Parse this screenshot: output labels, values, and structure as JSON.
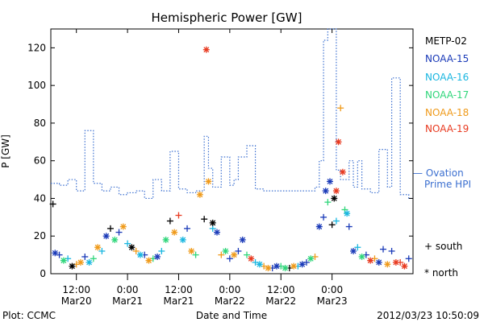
{
  "chart_data": {
    "type": "scatter",
    "title": "Hemispheric Power [GW]",
    "xlabel": "Date and Time",
    "ylabel": "P [GW]",
    "xlim": [
      "2012-03-20T06:00",
      "2012-03-23T19:00"
    ],
    "ylim": [
      0,
      130
    ],
    "yticks": [
      0,
      20,
      40,
      60,
      80,
      100,
      120
    ],
    "xticks": [
      {
        "t": "2012-03-20T12:00",
        "line1": "12:00",
        "line2": "Mar20"
      },
      {
        "t": "2012-03-21T00:00",
        "line1": "0:00",
        "line2": "Mar21"
      },
      {
        "t": "2012-03-21T12:00",
        "line1": "12:00",
        "line2": "Mar21"
      },
      {
        "t": "2012-03-22T00:00",
        "line1": "0:00",
        "line2": "Mar22"
      },
      {
        "t": "2012-03-22T12:00",
        "line1": "12:00",
        "line2": "Mar22"
      },
      {
        "t": "2012-03-23T00:00",
        "line1": "0:00",
        "line2": "Mar23"
      }
    ],
    "legend": {
      "placement": "right",
      "satellites": [
        {
          "name": "METP-02",
          "color": "#000000"
        },
        {
          "name": "NOAA-15",
          "color": "#1a3ab8"
        },
        {
          "name": "NOAA-16",
          "color": "#19b6e0"
        },
        {
          "name": "NOAA-17",
          "color": "#2fd67a"
        },
        {
          "name": "NOAA-18",
          "color": "#ef9a1a"
        },
        {
          "name": "NOAA-19",
          "color": "#e83a20"
        }
      ],
      "ovation_line1": "— Ovation",
      "ovation_line2": "Prime HPI",
      "ovation_color": "#3b6fd0",
      "south_label": "+ south",
      "north_label": "* north"
    },
    "series": [
      {
        "name": "Ovation Prime HPI",
        "style": "dotted-step",
        "color": "#3b6fd0",
        "t": [
          "2012-03-20T06:00",
          "2012-03-20T08:00",
          "2012-03-20T10:00",
          "2012-03-20T12:00",
          "2012-03-20T14:00",
          "2012-03-20T16:00",
          "2012-03-20T18:00",
          "2012-03-20T20:00",
          "2012-03-20T22:00",
          "2012-03-21T00:00",
          "2012-03-21T02:00",
          "2012-03-21T04:00",
          "2012-03-21T06:00",
          "2012-03-21T08:00",
          "2012-03-21T10:00",
          "2012-03-21T12:00",
          "2012-03-21T14:00",
          "2012-03-21T16:00",
          "2012-03-21T18:00",
          "2012-03-21T19:00",
          "2012-03-21T20:00",
          "2012-03-21T22:00",
          "2012-03-22T00:00",
          "2012-03-22T01:00",
          "2012-03-22T02:00",
          "2012-03-22T04:00",
          "2012-03-22T06:00",
          "2012-03-22T08:00",
          "2012-03-22T10:00",
          "2012-03-22T12:00",
          "2012-03-22T14:00",
          "2012-03-22T16:00",
          "2012-03-22T18:00",
          "2012-03-22T19:00",
          "2012-03-22T20:00",
          "2012-03-22T21:00",
          "2012-03-22T22:00",
          "2012-03-22T23:00",
          "2012-03-23T00:00",
          "2012-03-23T01:00",
          "2012-03-23T02:00",
          "2012-03-23T04:00",
          "2012-03-23T05:00",
          "2012-03-23T06:00",
          "2012-03-23T07:00",
          "2012-03-23T09:00",
          "2012-03-23T11:00",
          "2012-03-23T13:00",
          "2012-03-23T14:00",
          "2012-03-23T16:00",
          "2012-03-23T18:00",
          "2012-03-23T19:00"
        ],
        "y": [
          48,
          47,
          50,
          44,
          76,
          48,
          44,
          46,
          42,
          43,
          44,
          40,
          50,
          44,
          65,
          45,
          43,
          44,
          73,
          56,
          46,
          62,
          47,
          50,
          62,
          68,
          45,
          44,
          44,
          44,
          44,
          44,
          44,
          44,
          46,
          60,
          124,
          130,
          130,
          55,
          50,
          60,
          46,
          60,
          45,
          43,
          66,
          46,
          104,
          42,
          40,
          40
        ]
      },
      {
        "name": "south",
        "marker": "+",
        "points": [
          {
            "t": "2012-03-20T06:30",
            "y": 37,
            "c": "#000000"
          },
          {
            "t": "2012-03-20T08:00",
            "y": 10,
            "c": "#1a3ab8"
          },
          {
            "t": "2012-03-20T10:00",
            "y": 8,
            "c": "#19b6e0"
          },
          {
            "t": "2012-03-20T12:00",
            "y": 5,
            "c": "#ef9a1a"
          },
          {
            "t": "2012-03-20T14:00",
            "y": 9,
            "c": "#1a3ab8"
          },
          {
            "t": "2012-03-20T16:00",
            "y": 8,
            "c": "#2fd67a"
          },
          {
            "t": "2012-03-20T18:00",
            "y": 12,
            "c": "#19b6e0"
          },
          {
            "t": "2012-03-20T20:00",
            "y": 24,
            "c": "#000000"
          },
          {
            "t": "2012-03-20T22:00",
            "y": 22,
            "c": "#1a3ab8"
          },
          {
            "t": "2012-03-21T00:00",
            "y": 16,
            "c": "#19b6e0"
          },
          {
            "t": "2012-03-21T02:00",
            "y": 12,
            "c": "#ef9a1a"
          },
          {
            "t": "2012-03-21T04:00",
            "y": 10,
            "c": "#1a3ab8"
          },
          {
            "t": "2012-03-21T06:00",
            "y": 8,
            "c": "#2fd67a"
          },
          {
            "t": "2012-03-21T08:00",
            "y": 12,
            "c": "#19b6e0"
          },
          {
            "t": "2012-03-21T10:00",
            "y": 28,
            "c": "#000000"
          },
          {
            "t": "2012-03-21T12:00",
            "y": 31,
            "c": "#e83a20"
          },
          {
            "t": "2012-03-21T14:00",
            "y": 24,
            "c": "#1a3ab8"
          },
          {
            "t": "2012-03-21T16:00",
            "y": 10,
            "c": "#2fd67a"
          },
          {
            "t": "2012-03-21T18:00",
            "y": 29,
            "c": "#000000"
          },
          {
            "t": "2012-03-21T20:00",
            "y": 24,
            "c": "#19b6e0"
          },
          {
            "t": "2012-03-21T22:00",
            "y": 10,
            "c": "#ef9a1a"
          },
          {
            "t": "2012-03-22T00:00",
            "y": 8,
            "c": "#1a3ab8"
          },
          {
            "t": "2012-03-22T02:00",
            "y": 12,
            "c": "#1a3ab8"
          },
          {
            "t": "2012-03-22T04:00",
            "y": 10,
            "c": "#2fd67a"
          },
          {
            "t": "2012-03-22T06:00",
            "y": 6,
            "c": "#19b6e0"
          },
          {
            "t": "2012-03-22T08:00",
            "y": 4,
            "c": "#ef9a1a"
          },
          {
            "t": "2012-03-22T10:00",
            "y": 3,
            "c": "#1a3ab8"
          },
          {
            "t": "2012-03-22T12:00",
            "y": 4,
            "c": "#2fd67a"
          },
          {
            "t": "2012-03-22T14:00",
            "y": 3,
            "c": "#000000"
          },
          {
            "t": "2012-03-22T16:00",
            "y": 4,
            "c": "#19b6e0"
          },
          {
            "t": "2012-03-22T18:00",
            "y": 6,
            "c": "#1a3ab8"
          },
          {
            "t": "2012-03-22T20:00",
            "y": 9,
            "c": "#ef9a1a"
          },
          {
            "t": "2012-03-22T22:00",
            "y": 30,
            "c": "#1a3ab8"
          },
          {
            "t": "2012-03-22T23:00",
            "y": 38,
            "c": "#2fd67a"
          },
          {
            "t": "2012-03-23T00:00",
            "y": 26,
            "c": "#000000"
          },
          {
            "t": "2012-03-23T01:00",
            "y": 28,
            "c": "#19b6e0"
          },
          {
            "t": "2012-03-23T02:00",
            "y": 88,
            "c": "#ef9a1a"
          },
          {
            "t": "2012-03-23T03:00",
            "y": 34,
            "c": "#2fd67a"
          },
          {
            "t": "2012-03-23T04:00",
            "y": 25,
            "c": "#1a3ab8"
          },
          {
            "t": "2012-03-23T06:00",
            "y": 14,
            "c": "#19b6e0"
          },
          {
            "t": "2012-03-23T08:00",
            "y": 10,
            "c": "#1a3ab8"
          },
          {
            "t": "2012-03-23T10:00",
            "y": 8,
            "c": "#ef9a1a"
          },
          {
            "t": "2012-03-23T12:00",
            "y": 13,
            "c": "#1a3ab8"
          },
          {
            "t": "2012-03-23T14:00",
            "y": 12,
            "c": "#1a3ab8"
          },
          {
            "t": "2012-03-23T16:00",
            "y": 6,
            "c": "#e83a20"
          },
          {
            "t": "2012-03-23T18:00",
            "y": 8,
            "c": "#1a3ab8"
          }
        ]
      },
      {
        "name": "north",
        "marker": "*",
        "points": [
          {
            "t": "2012-03-20T07:00",
            "y": 11,
            "c": "#1a3ab8"
          },
          {
            "t": "2012-03-20T09:00",
            "y": 7,
            "c": "#2fd67a"
          },
          {
            "t": "2012-03-20T11:00",
            "y": 4,
            "c": "#000000"
          },
          {
            "t": "2012-03-20T13:00",
            "y": 6,
            "c": "#ef9a1a"
          },
          {
            "t": "2012-03-20T15:00",
            "y": 6,
            "c": "#19b6e0"
          },
          {
            "t": "2012-03-20T17:00",
            "y": 14,
            "c": "#ef9a1a"
          },
          {
            "t": "2012-03-20T19:00",
            "y": 20,
            "c": "#1a3ab8"
          },
          {
            "t": "2012-03-20T21:00",
            "y": 18,
            "c": "#2fd67a"
          },
          {
            "t": "2012-03-20T23:00",
            "y": 25,
            "c": "#ef9a1a"
          },
          {
            "t": "2012-03-21T01:00",
            "y": 14,
            "c": "#000000"
          },
          {
            "t": "2012-03-21T03:00",
            "y": 10,
            "c": "#19b6e0"
          },
          {
            "t": "2012-03-21T05:00",
            "y": 7,
            "c": "#ef9a1a"
          },
          {
            "t": "2012-03-21T07:00",
            "y": 9,
            "c": "#1a3ab8"
          },
          {
            "t": "2012-03-21T09:00",
            "y": 18,
            "c": "#2fd67a"
          },
          {
            "t": "2012-03-21T11:00",
            "y": 22,
            "c": "#ef9a1a"
          },
          {
            "t": "2012-03-21T13:00",
            "y": 18,
            "c": "#19b6e0"
          },
          {
            "t": "2012-03-21T15:00",
            "y": 12,
            "c": "#ef9a1a"
          },
          {
            "t": "2012-03-21T17:00",
            "y": 42,
            "c": "#ef9a1a"
          },
          {
            "t": "2012-03-21T18:30",
            "y": 119,
            "c": "#e83a20"
          },
          {
            "t": "2012-03-21T19:00",
            "y": 49,
            "c": "#ef9a1a"
          },
          {
            "t": "2012-03-21T20:00",
            "y": 27,
            "c": "#000000"
          },
          {
            "t": "2012-03-21T21:00",
            "y": 22,
            "c": "#1a3ab8"
          },
          {
            "t": "2012-03-21T23:00",
            "y": 12,
            "c": "#2fd67a"
          },
          {
            "t": "2012-03-22T01:00",
            "y": 10,
            "c": "#ef9a1a"
          },
          {
            "t": "2012-03-22T03:00",
            "y": 18,
            "c": "#1a3ab8"
          },
          {
            "t": "2012-03-22T05:00",
            "y": 8,
            "c": "#e83a20"
          },
          {
            "t": "2012-03-22T07:00",
            "y": 5,
            "c": "#19b6e0"
          },
          {
            "t": "2012-03-22T09:00",
            "y": 3,
            "c": "#ef9a1a"
          },
          {
            "t": "2012-03-22T11:00",
            "y": 4,
            "c": "#1a3ab8"
          },
          {
            "t": "2012-03-22T13:00",
            "y": 3,
            "c": "#2fd67a"
          },
          {
            "t": "2012-03-22T15:00",
            "y": 4,
            "c": "#ef9a1a"
          },
          {
            "t": "2012-03-22T17:00",
            "y": 5,
            "c": "#1a3ab8"
          },
          {
            "t": "2012-03-22T19:00",
            "y": 8,
            "c": "#2fd67a"
          },
          {
            "t": "2012-03-22T21:00",
            "y": 25,
            "c": "#1a3ab8"
          },
          {
            "t": "2012-03-22T22:30",
            "y": 44,
            "c": "#1a3ab8"
          },
          {
            "t": "2012-03-22T23:30",
            "y": 49,
            "c": "#1a3ab8"
          },
          {
            "t": "2012-03-23T00:30",
            "y": 40,
            "c": "#000000"
          },
          {
            "t": "2012-03-23T01:00",
            "y": 44,
            "c": "#e83a20"
          },
          {
            "t": "2012-03-23T01:30",
            "y": 70,
            "c": "#e83a20"
          },
          {
            "t": "2012-03-23T02:30",
            "y": 54,
            "c": "#e83a20"
          },
          {
            "t": "2012-03-23T03:30",
            "y": 32,
            "c": "#19b6e0"
          },
          {
            "t": "2012-03-23T05:00",
            "y": 12,
            "c": "#1a3ab8"
          },
          {
            "t": "2012-03-23T07:00",
            "y": 9,
            "c": "#2fd67a"
          },
          {
            "t": "2012-03-23T09:00",
            "y": 7,
            "c": "#e83a20"
          },
          {
            "t": "2012-03-23T11:00",
            "y": 6,
            "c": "#1a3ab8"
          },
          {
            "t": "2012-03-23T13:00",
            "y": 5,
            "c": "#ef9a1a"
          },
          {
            "t": "2012-03-23T15:00",
            "y": 6,
            "c": "#e83a20"
          },
          {
            "t": "2012-03-23T17:00",
            "y": 4,
            "c": "#e83a20"
          }
        ]
      }
    ]
  },
  "footer": {
    "left": "Plot: CCMC",
    "right": "2012/03/23 10:50:09"
  }
}
